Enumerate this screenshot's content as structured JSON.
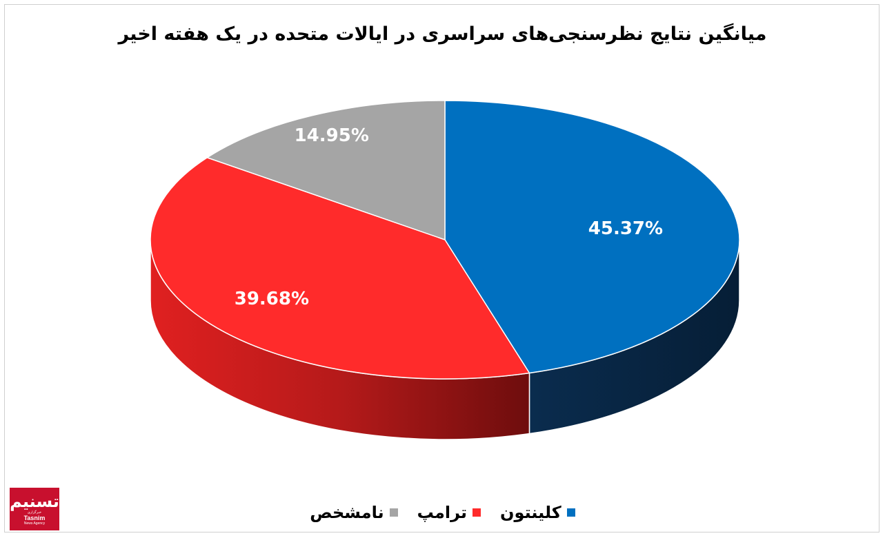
{
  "chart_data": {
    "type": "pie",
    "style": "3d",
    "title": "میانگین نتایج نظرسنجی‌های سراسری در ایالات متحده در یک هفته اخیر",
    "slices": [
      {
        "name": "کلینتون",
        "value": 45.37,
        "label": "45.37%",
        "color": "#0070C0",
        "side_color": "#0b2a4a"
      },
      {
        "name": "ترامپ",
        "value": 39.68,
        "label": "39.68%",
        "color": "#FF2B2B",
        "side_color": "#a31515"
      },
      {
        "name": "نامشخص",
        "value": 14.95,
        "label": "14.95%",
        "color": "#A5A5A5",
        "side_color": "#6e6e6e"
      }
    ],
    "legend_position": "bottom"
  },
  "watermark": {
    "mark": "تسنیم",
    "text": "Tasnim",
    "sub": "News Agency",
    "caption": "خبرگزاری",
    "color": "#c8102e"
  }
}
